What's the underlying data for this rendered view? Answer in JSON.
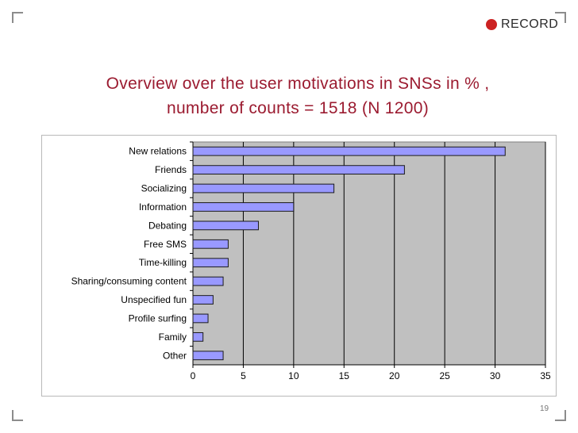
{
  "logo": {
    "text": "RECORD"
  },
  "title": {
    "line1": "Overview over the user motivations in SNSs in % ,",
    "line2": "number of counts = 1518 (N 1200)"
  },
  "colors": {
    "title": "#9b1b30",
    "bar_fill": "#9999ff",
    "bar_stroke": "#1a1a1a",
    "plot_bg": "#c0c0c0",
    "logo_dot": "#cc2222"
  },
  "page_number": "19",
  "chart_data": {
    "type": "bar",
    "orientation": "horizontal",
    "title": "",
    "xlabel": "",
    "ylabel": "",
    "categories": [
      "New relations",
      "Friends",
      "Socializing",
      "Information",
      "Debating",
      "Free SMS",
      "Time-killing",
      "Sharing/consuming content",
      "Unspecified fun",
      "Profile surfing",
      "Family",
      "Other"
    ],
    "values": [
      31,
      21,
      14,
      10,
      6.5,
      3.5,
      3.5,
      3,
      2,
      1.5,
      1,
      3
    ],
    "xlim": [
      0,
      35
    ],
    "xticks": [
      0,
      5,
      10,
      15,
      20,
      25,
      30,
      35
    ],
    "gridlines": "vertical",
    "legend": "none"
  }
}
